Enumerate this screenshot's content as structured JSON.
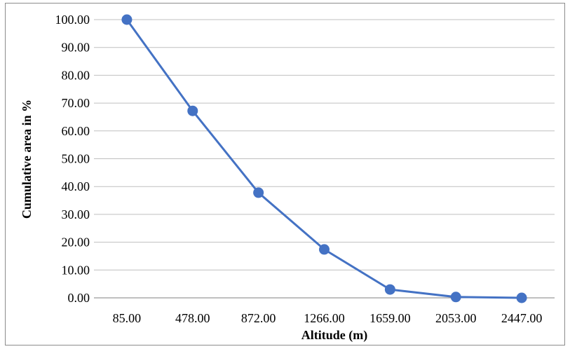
{
  "chart_data": {
    "type": "line",
    "title": "",
    "xlabel": "Altitude (m)",
    "ylabel": "Cumulative area in %",
    "categories": [
      "85.00",
      "478.00",
      "872.00",
      "1266.00",
      "1659.00",
      "2053.00",
      "2447.00"
    ],
    "series": [
      {
        "values": [
          100.0,
          67.2,
          37.8,
          17.4,
          3.0,
          0.3,
          0.0
        ],
        "color": "#4472c4"
      }
    ],
    "ylim": [
      0,
      100
    ],
    "yticks": [
      "0.00",
      "10.00",
      "20.00",
      "30.00",
      "40.00",
      "50.00",
      "60.00",
      "70.00",
      "80.00",
      "90.00",
      "100.00"
    ],
    "grid": "horizontal",
    "legend": "none",
    "marker": "circle"
  }
}
